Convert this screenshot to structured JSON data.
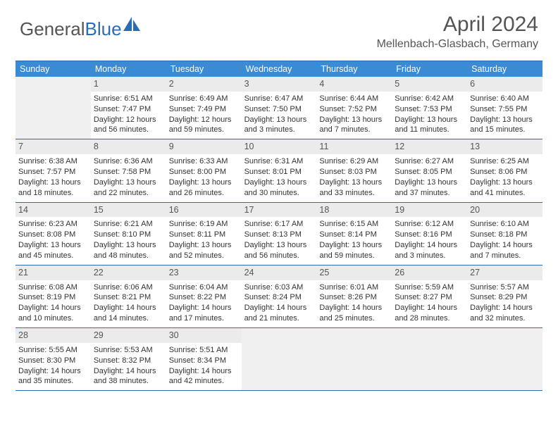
{
  "logo": {
    "text1": "General",
    "text2": "Blue"
  },
  "title": "April 2024",
  "location": "Mellenbach-Glasbach, Germany",
  "colors": {
    "header_bg": "#3b8bd4",
    "border": "#2a6db5",
    "daynum_bg": "#ebebeb",
    "blank_bg": "#f0f0f0",
    "text": "#333333",
    "title_text": "#555555"
  },
  "day_names": [
    "Sunday",
    "Monday",
    "Tuesday",
    "Wednesday",
    "Thursday",
    "Friday",
    "Saturday"
  ],
  "weeks": [
    [
      {
        "blank": true
      },
      {
        "n": "1",
        "sr": "Sunrise: 6:51 AM",
        "ss": "Sunset: 7:47 PM",
        "dl": "Daylight: 12 hours and 56 minutes."
      },
      {
        "n": "2",
        "sr": "Sunrise: 6:49 AM",
        "ss": "Sunset: 7:49 PM",
        "dl": "Daylight: 12 hours and 59 minutes."
      },
      {
        "n": "3",
        "sr": "Sunrise: 6:47 AM",
        "ss": "Sunset: 7:50 PM",
        "dl": "Daylight: 13 hours and 3 minutes."
      },
      {
        "n": "4",
        "sr": "Sunrise: 6:44 AM",
        "ss": "Sunset: 7:52 PM",
        "dl": "Daylight: 13 hours and 7 minutes."
      },
      {
        "n": "5",
        "sr": "Sunrise: 6:42 AM",
        "ss": "Sunset: 7:53 PM",
        "dl": "Daylight: 13 hours and 11 minutes."
      },
      {
        "n": "6",
        "sr": "Sunrise: 6:40 AM",
        "ss": "Sunset: 7:55 PM",
        "dl": "Daylight: 13 hours and 15 minutes."
      }
    ],
    [
      {
        "n": "7",
        "sr": "Sunrise: 6:38 AM",
        "ss": "Sunset: 7:57 PM",
        "dl": "Daylight: 13 hours and 18 minutes."
      },
      {
        "n": "8",
        "sr": "Sunrise: 6:36 AM",
        "ss": "Sunset: 7:58 PM",
        "dl": "Daylight: 13 hours and 22 minutes."
      },
      {
        "n": "9",
        "sr": "Sunrise: 6:33 AM",
        "ss": "Sunset: 8:00 PM",
        "dl": "Daylight: 13 hours and 26 minutes."
      },
      {
        "n": "10",
        "sr": "Sunrise: 6:31 AM",
        "ss": "Sunset: 8:01 PM",
        "dl": "Daylight: 13 hours and 30 minutes."
      },
      {
        "n": "11",
        "sr": "Sunrise: 6:29 AM",
        "ss": "Sunset: 8:03 PM",
        "dl": "Daylight: 13 hours and 33 minutes."
      },
      {
        "n": "12",
        "sr": "Sunrise: 6:27 AM",
        "ss": "Sunset: 8:05 PM",
        "dl": "Daylight: 13 hours and 37 minutes."
      },
      {
        "n": "13",
        "sr": "Sunrise: 6:25 AM",
        "ss": "Sunset: 8:06 PM",
        "dl": "Daylight: 13 hours and 41 minutes."
      }
    ],
    [
      {
        "n": "14",
        "sr": "Sunrise: 6:23 AM",
        "ss": "Sunset: 8:08 PM",
        "dl": "Daylight: 13 hours and 45 minutes."
      },
      {
        "n": "15",
        "sr": "Sunrise: 6:21 AM",
        "ss": "Sunset: 8:10 PM",
        "dl": "Daylight: 13 hours and 48 minutes."
      },
      {
        "n": "16",
        "sr": "Sunrise: 6:19 AM",
        "ss": "Sunset: 8:11 PM",
        "dl": "Daylight: 13 hours and 52 minutes."
      },
      {
        "n": "17",
        "sr": "Sunrise: 6:17 AM",
        "ss": "Sunset: 8:13 PM",
        "dl": "Daylight: 13 hours and 56 minutes."
      },
      {
        "n": "18",
        "sr": "Sunrise: 6:15 AM",
        "ss": "Sunset: 8:14 PM",
        "dl": "Daylight: 13 hours and 59 minutes."
      },
      {
        "n": "19",
        "sr": "Sunrise: 6:12 AM",
        "ss": "Sunset: 8:16 PM",
        "dl": "Daylight: 14 hours and 3 minutes."
      },
      {
        "n": "20",
        "sr": "Sunrise: 6:10 AM",
        "ss": "Sunset: 8:18 PM",
        "dl": "Daylight: 14 hours and 7 minutes."
      }
    ],
    [
      {
        "n": "21",
        "sr": "Sunrise: 6:08 AM",
        "ss": "Sunset: 8:19 PM",
        "dl": "Daylight: 14 hours and 10 minutes."
      },
      {
        "n": "22",
        "sr": "Sunrise: 6:06 AM",
        "ss": "Sunset: 8:21 PM",
        "dl": "Daylight: 14 hours and 14 minutes."
      },
      {
        "n": "23",
        "sr": "Sunrise: 6:04 AM",
        "ss": "Sunset: 8:22 PM",
        "dl": "Daylight: 14 hours and 17 minutes."
      },
      {
        "n": "24",
        "sr": "Sunrise: 6:03 AM",
        "ss": "Sunset: 8:24 PM",
        "dl": "Daylight: 14 hours and 21 minutes."
      },
      {
        "n": "25",
        "sr": "Sunrise: 6:01 AM",
        "ss": "Sunset: 8:26 PM",
        "dl": "Daylight: 14 hours and 25 minutes."
      },
      {
        "n": "26",
        "sr": "Sunrise: 5:59 AM",
        "ss": "Sunset: 8:27 PM",
        "dl": "Daylight: 14 hours and 28 minutes."
      },
      {
        "n": "27",
        "sr": "Sunrise: 5:57 AM",
        "ss": "Sunset: 8:29 PM",
        "dl": "Daylight: 14 hours and 32 minutes."
      }
    ],
    [
      {
        "n": "28",
        "sr": "Sunrise: 5:55 AM",
        "ss": "Sunset: 8:30 PM",
        "dl": "Daylight: 14 hours and 35 minutes."
      },
      {
        "n": "29",
        "sr": "Sunrise: 5:53 AM",
        "ss": "Sunset: 8:32 PM",
        "dl": "Daylight: 14 hours and 38 minutes."
      },
      {
        "n": "30",
        "sr": "Sunrise: 5:51 AM",
        "ss": "Sunset: 8:34 PM",
        "dl": "Daylight: 14 hours and 42 minutes."
      },
      {
        "blank": true
      },
      {
        "blank": true
      },
      {
        "blank": true
      },
      {
        "blank": true
      }
    ]
  ]
}
